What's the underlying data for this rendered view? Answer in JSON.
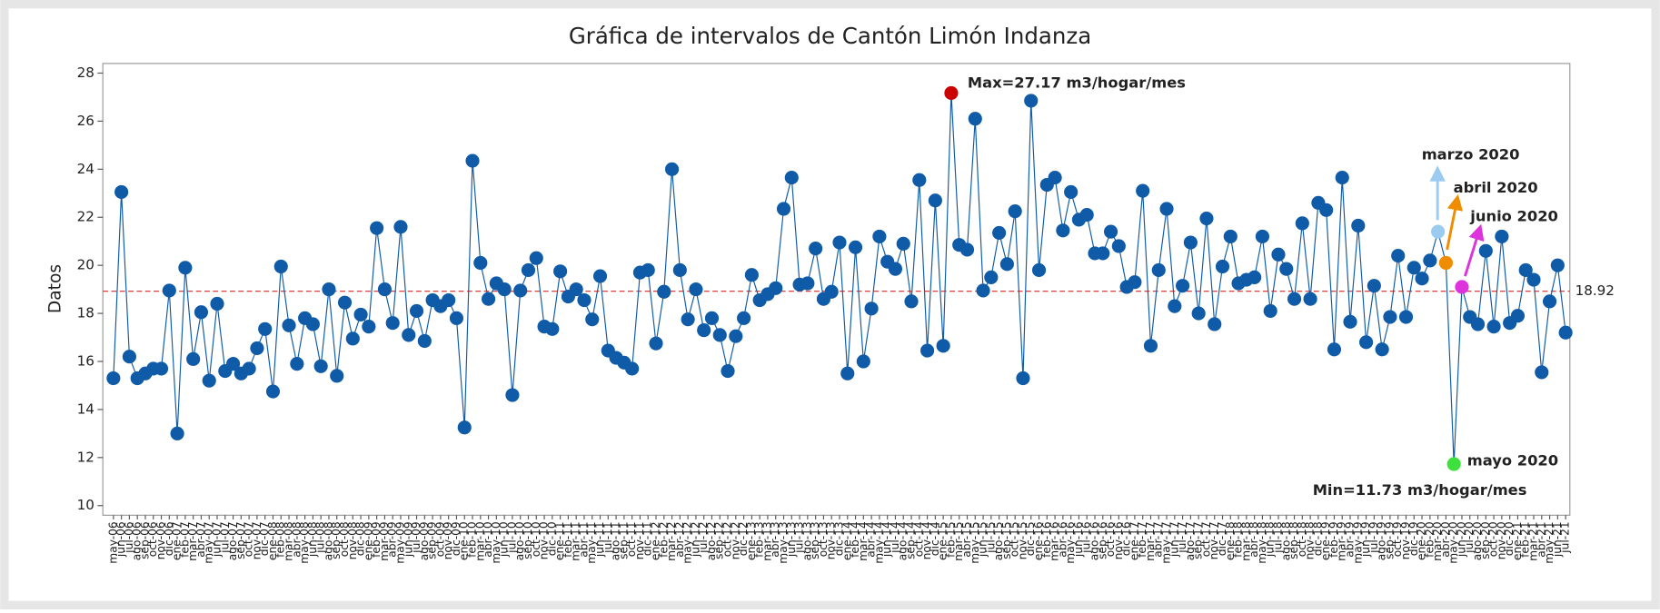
{
  "chart_data": {
    "type": "line",
    "title": "Gráfica de intervalos de Cantón Limón Indanza",
    "y_label": "Datos",
    "categories": [
      "may-06",
      "jun-06",
      "jul-06",
      "ago-06",
      "sep-06",
      "oct-06",
      "nov-06",
      "dic-06",
      "ene-07",
      "feb-07",
      "mar-07",
      "abr-07",
      "may-07",
      "jun-07",
      "jul-07",
      "ago-07",
      "sep-07",
      "oct-07",
      "nov-07",
      "dic-07",
      "ene-08",
      "feb-08",
      "mar-08",
      "abr-08",
      "may-08",
      "jun-08",
      "jul-08",
      "ago-08",
      "sep-08",
      "oct-08",
      "nov-08",
      "dic-08",
      "ene-09",
      "feb-09",
      "mar-09",
      "abr-09",
      "may-09",
      "jun-09",
      "jul-09",
      "ago-09",
      "sep-09",
      "oct-09",
      "nov-09",
      "dic-09",
      "ene-10",
      "feb-10",
      "mar-10",
      "abr-10",
      "may-10",
      "jun-10",
      "jul-10",
      "ago-10",
      "sep-10",
      "oct-10",
      "nov-10",
      "dic-10",
      "ene-11",
      "feb-11",
      "mar-11",
      "abr-11",
      "may-11",
      "jun-11",
      "jul-11",
      "ago-11",
      "sep-11",
      "oct-11",
      "nov-11",
      "dic-11",
      "ene-12",
      "feb-12",
      "mar-12",
      "abr-12",
      "may-12",
      "jun-12",
      "jul-12",
      "ago-12",
      "sep-12",
      "oct-12",
      "nov-12",
      "dic-12",
      "ene-13",
      "feb-13",
      "mar-13",
      "abr-13",
      "may-13",
      "jun-13",
      "jul-13",
      "ago-13",
      "sep-13",
      "oct-13",
      "nov-13",
      "dic-13",
      "ene-14",
      "feb-14",
      "mar-14",
      "abr-14",
      "may-14",
      "jun-14",
      "jul-14",
      "ago-14",
      "sep-14",
      "oct-14",
      "nov-14",
      "dic-14",
      "ene-15",
      "feb-15",
      "mar-15",
      "abr-15",
      "may-15",
      "jun-15",
      "jul-15",
      "ago-15",
      "sep-15",
      "oct-15",
      "nov-15",
      "dic-15",
      "ene-16",
      "feb-16",
      "mar-16",
      "abr-16",
      "may-16",
      "jun-16",
      "jul-16",
      "ago-16",
      "sep-16",
      "oct-16",
      "nov-16",
      "dic-16",
      "ene-17",
      "feb-17",
      "mar-17",
      "abr-17",
      "may-17",
      "jun-17",
      "jul-17",
      "ago-17",
      "sep-17",
      "oct-17",
      "nov-17",
      "dic-17",
      "ene-18",
      "feb-18",
      "mar-18",
      "abr-18",
      "may-18",
      "jun-18",
      "jul-18",
      "ago-18",
      "sep-18",
      "oct-18",
      "nov-18",
      "dic-18",
      "ene-19",
      "feb-19",
      "mar-19",
      "abr-19",
      "may-19",
      "jun-19",
      "jul-19",
      "ago-19",
      "sep-19",
      "oct-19",
      "nov-19",
      "dic-19",
      "ene-20",
      "feb-20",
      "mar-20",
      "abr-20",
      "may-20",
      "jun-20",
      "jul-20",
      "ago-20",
      "sep-20",
      "oct-20",
      "nov-20",
      "dic-20",
      "ene-21",
      "feb-21",
      "mar-21",
      "abr-21",
      "may-21",
      "jun-21",
      "jul-21"
    ],
    "values": [
      15.3,
      23.05,
      16.2,
      15.3,
      15.5,
      15.7,
      15.7,
      18.95,
      13.0,
      19.9,
      16.1,
      18.05,
      15.2,
      18.4,
      15.6,
      15.9,
      15.5,
      15.7,
      16.55,
      17.35,
      14.75,
      19.95,
      17.5,
      15.9,
      17.8,
      17.55,
      15.8,
      19.0,
      15.4,
      18.45,
      16.95,
      17.95,
      17.45,
      21.55,
      19.0,
      17.6,
      21.6,
      17.1,
      18.1,
      16.85,
      18.55,
      18.3,
      18.55,
      17.8,
      13.25,
      24.35,
      20.1,
      18.6,
      19.25,
      19.0,
      14.6,
      18.95,
      19.8,
      20.3,
      17.45,
      17.35,
      19.75,
      18.7,
      19.0,
      18.55,
      17.75,
      19.55,
      16.45,
      16.15,
      15.95,
      15.7,
      19.7,
      19.8,
      16.75,
      18.9,
      24.0,
      19.8,
      17.75,
      19.0,
      17.3,
      17.8,
      17.1,
      15.6,
      17.05,
      17.8,
      19.6,
      18.55,
      18.8,
      19.05,
      22.35,
      23.65,
      19.2,
      19.25,
      20.7,
      18.6,
      18.9,
      20.95,
      15.5,
      20.75,
      16.0,
      18.2,
      21.2,
      20.15,
      19.85,
      20.9,
      18.5,
      23.55,
      16.45,
      22.7,
      16.65,
      27.17,
      20.85,
      20.65,
      26.1,
      18.95,
      19.5,
      21.35,
      20.05,
      22.25,
      15.3,
      26.85,
      19.8,
      23.35,
      23.65,
      21.45,
      23.05,
      21.9,
      22.1,
      20.5,
      20.5,
      21.4,
      20.8,
      19.1,
      19.3,
      23.1,
      16.65,
      19.8,
      22.35,
      18.3,
      19.15,
      20.95,
      18.0,
      21.95,
      17.55,
      19.95,
      21.2,
      19.25,
      19.4,
      19.5,
      21.2,
      18.1,
      20.45,
      19.85,
      18.6,
      21.75,
      18.6,
      22.6,
      22.3,
      16.5,
      23.65,
      17.65,
      21.65,
      16.8,
      19.15,
      16.5,
      17.85,
      20.4,
      17.85,
      19.9,
      19.45,
      20.2,
      21.4,
      20.1,
      11.73,
      19.1,
      17.85,
      17.55,
      20.6,
      17.45,
      21.2,
      17.6,
      17.9,
      19.8,
      19.4,
      15.55,
      18.5,
      20.0,
      17.2
    ],
    "color": "#0f5ba8",
    "ylim": [
      9.6,
      28.4
    ],
    "yticks": [
      10,
      12,
      14,
      16,
      18,
      20,
      22,
      24,
      26,
      28
    ],
    "mean_line": 18.92,
    "mean_line_color": "#d62728",
    "annotations": [
      {
        "text": "Max=27.17 m3/hogar/mes",
        "point_index": 105,
        "color": "#cc0000"
      },
      {
        "text": "Min=11.73 m3/hogar/mes"
      },
      {
        "text": "mayo 2020",
        "point_index": 168,
        "color": "#3ee03e"
      },
      {
        "text": "marzo 2020",
        "point_index": 166,
        "color": "#9ccbf2"
      },
      {
        "text": "abril 2020",
        "point_index": 167,
        "color": "#f08c00"
      },
      {
        "text": "junio 2020",
        "point_index": 169,
        "color": "#dd33dd"
      }
    ]
  }
}
